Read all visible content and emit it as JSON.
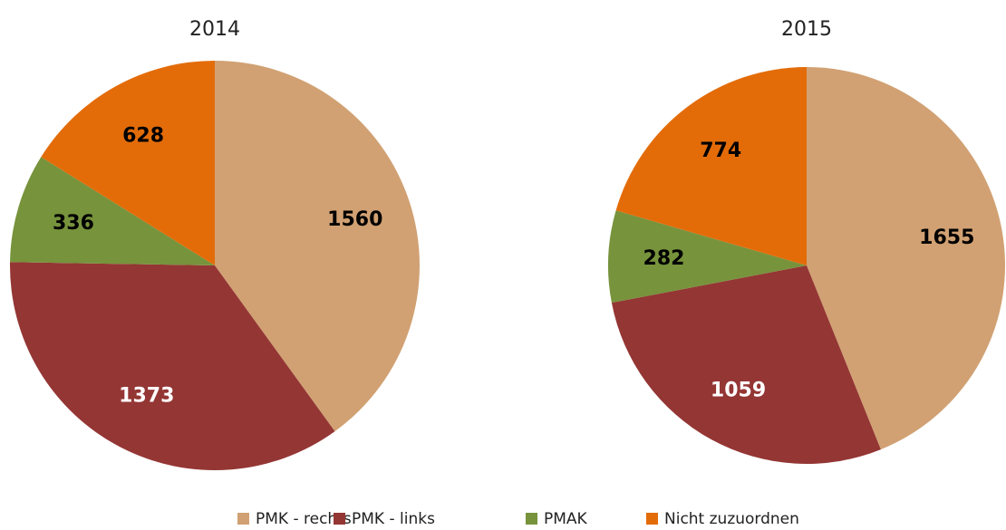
{
  "chart_data": [
    {
      "type": "pie",
      "title": "2014",
      "categories": [
        "PMK - rechts",
        "PMK - links",
        "PMAK",
        "Nicht zuzuordnen"
      ],
      "values": [
        1560,
        1373,
        336,
        628
      ],
      "colors": [
        "#d1a173",
        "#943634",
        "#77933c",
        "#e36c09"
      ]
    },
    {
      "type": "pie",
      "title": "2015",
      "categories": [
        "PMK - rechts",
        "PMK - links",
        "PMAK",
        "Nicht zuzuordnen"
      ],
      "values": [
        1655,
        1059,
        282,
        774
      ],
      "colors": [
        "#d1a173",
        "#943634",
        "#77933c",
        "#e36c09"
      ]
    }
  ]
}
